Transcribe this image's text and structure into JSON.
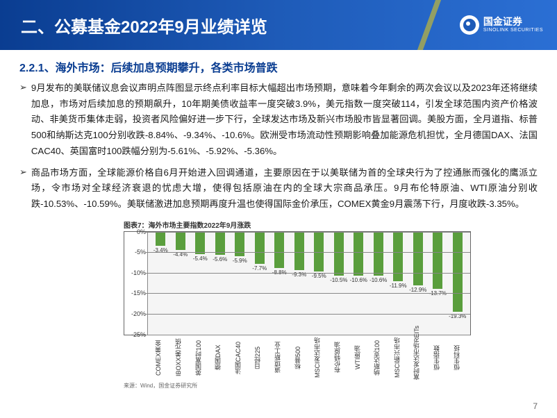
{
  "header": {
    "title": "二、公募基金2022年9月业绩详览",
    "logo_cn": "国金证券",
    "logo_en": "SINOLINK SECURITIES"
  },
  "section_title": "2.2.1、海外市场：后续加息预期攀升，各类市场普跌",
  "paragraphs": [
    "9月发布的美联储议息会议声明点阵图显示终点利率目标大幅超出市场预期，意味着今年剩余的两次会议以及2023年还将继续加息，市场对后续加息的预期飙升，10年期美债收益率一度突破3.9%，美元指数一度突破114，引发全球范围内资产价格波动、非美货币集体走弱，投资者风险偏好进一步下行，全球发达市场及新兴市场股市皆显著回调。美股方面，全月道指、标普500和纳斯达克100分别收跌-8.84%、-9.34%、-10.6%。欧洲受市场流动性预期影响叠加能源危机担忧，全月德国DAX、法国CAC40、英国富时100跌幅分别为-5.61%、-5.92%、-5.36%。",
    "商品市场方面，全球能源价格自6月开始进入回调通道，主要原因在于以美联储为首的全球央行为了控通胀而强化的鹰派立场，令市场对全球经济衰退的忧虑大增，使得包括原油在内的全球大宗商品承压。9月布伦特原油、WTI原油分别收跌-10.53%、-10.59%。美联储激进加息预期再度升温也使得国际金价承压，COMEX黄金9月震荡下行，月度收跌-3.35%。"
  ],
  "chart": {
    "title": "图表7：海外市场主要指数2022年9月涨跌",
    "type": "bar",
    "y_ticks": [
      {
        "v": 0,
        "l": "0%"
      },
      {
        "v": -5,
        "l": "-5%"
      },
      {
        "v": -10,
        "l": "-10%"
      },
      {
        "v": -15,
        "l": "-15%"
      },
      {
        "v": -20,
        "l": "-20%"
      },
      {
        "v": -25,
        "l": "-25%"
      }
    ],
    "ylim_min": -25,
    "ylim_max": 0,
    "bar_color": "#5a9e3d",
    "grid_color": "#888888",
    "background_color": "#f5f5f5",
    "series": [
      {
        "name": "COMEX黄金",
        "value": -3.4,
        "label": "-3.4%"
      },
      {
        "name": "IBOXX美元债",
        "value": -4.4,
        "label": "-4.4%"
      },
      {
        "name": "英国富时100",
        "value": -5.4,
        "label": "-5.4%"
      },
      {
        "name": "德国DAX",
        "value": -5.6,
        "label": "-5.6%"
      },
      {
        "name": "法国CAC40",
        "value": -5.9,
        "label": "-5.9%"
      },
      {
        "name": "日经225",
        "value": -7.7,
        "label": "-7.7%"
      },
      {
        "name": "道琼斯工业",
        "value": -8.8,
        "label": "-8.8%"
      },
      {
        "name": "标普500",
        "value": -9.3,
        "label": "-9.3%"
      },
      {
        "name": "MSCI发达市场",
        "value": -9.5,
        "label": "-9.5%"
      },
      {
        "name": "布伦特原油",
        "value": -10.5,
        "label": "-10.5%"
      },
      {
        "name": "WTI原油",
        "value": -10.6,
        "label": "-10.6%"
      },
      {
        "name": "纳斯达克100",
        "value": -10.6,
        "label": "-10.6%"
      },
      {
        "name": "MSCI新兴市场",
        "value": -11.9,
        "label": "-11.9%"
      },
      {
        "name": "富时发达市场REITs",
        "value": -12.9,
        "label": "-12.9%"
      },
      {
        "name": "恒生指数",
        "value": -13.7,
        "label": "-13.7%"
      },
      {
        "name": "恒生科技",
        "value": -19.3,
        "label": "-19.3%"
      }
    ],
    "source": "来源：Wind，国金证券研究所"
  },
  "page_number": "7"
}
